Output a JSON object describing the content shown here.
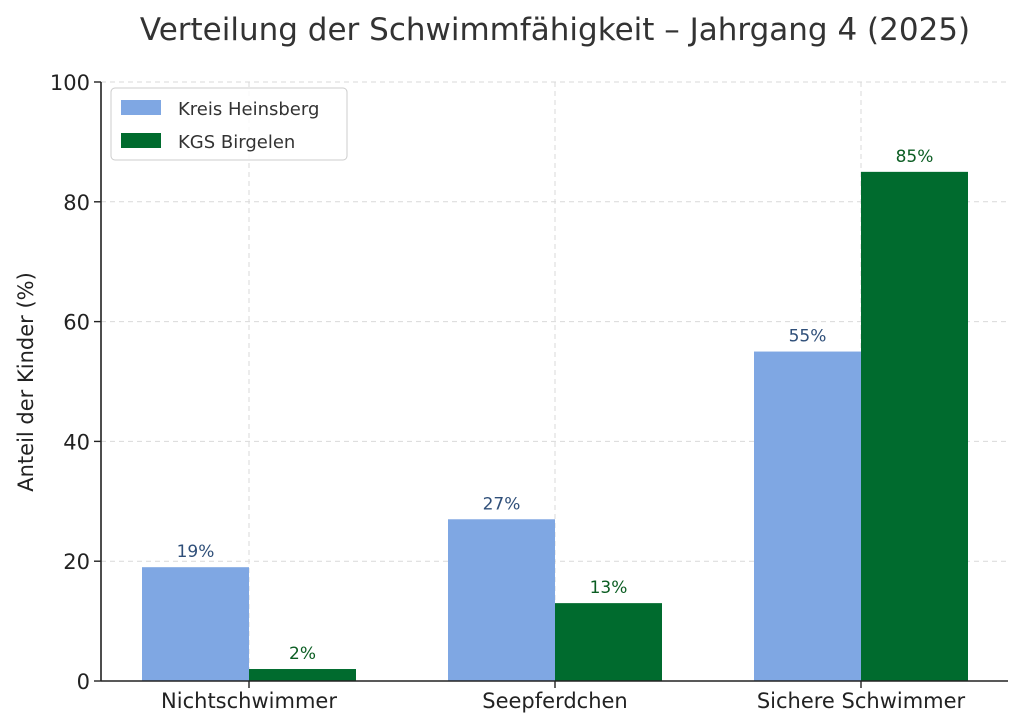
{
  "chart_data": {
    "type": "bar",
    "title": "Verteilung der Schwimmfähigkeit – Jahrgang 4 (2025)",
    "xlabel": "",
    "ylabel": "Anteil der Kinder (%)",
    "ylim": [
      0,
      100
    ],
    "yticks": [
      0,
      20,
      40,
      60,
      80,
      100
    ],
    "grid": true,
    "legend_position": "top-left",
    "categories": [
      "Nichtschwimmer",
      "Seepferdchen",
      "Sichere Schwimmer"
    ],
    "series": [
      {
        "name": "Kreis Heinsberg",
        "color": "#7fa7e3",
        "label_color": "#2f4f79",
        "values": [
          19,
          27,
          55
        ],
        "labels": [
          "19%",
          "27%",
          "55%"
        ]
      },
      {
        "name": "KGS Birgelen",
        "color": "#006b2e",
        "label_color": "#0b5d22",
        "values": [
          2,
          13,
          85
        ],
        "labels": [
          "2%",
          "13%",
          "85%"
        ]
      }
    ]
  }
}
